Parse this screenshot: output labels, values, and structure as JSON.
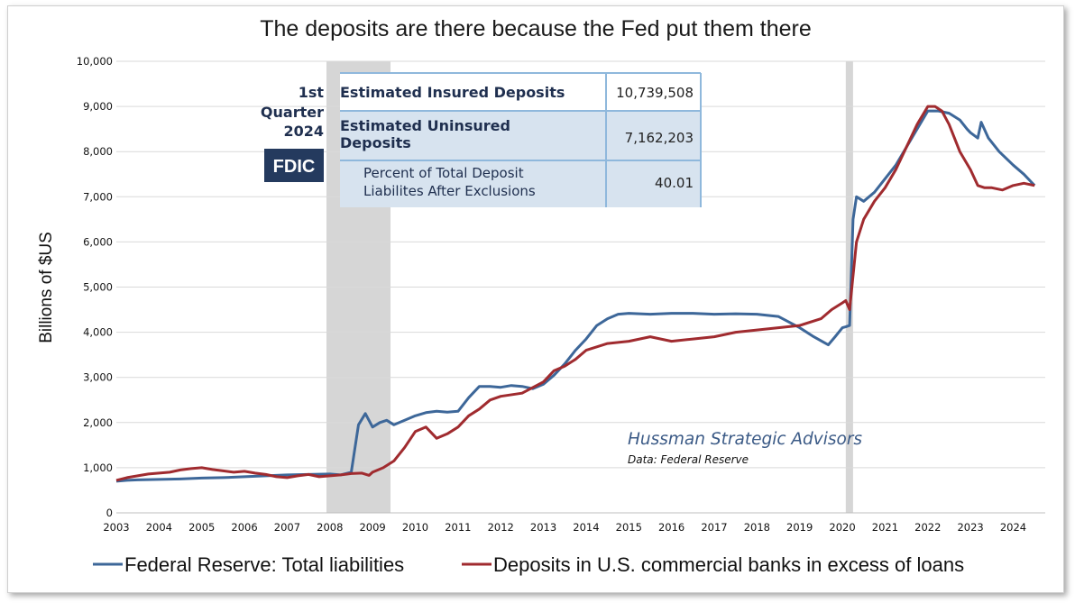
{
  "chart_data": {
    "type": "line",
    "title": "The deposits are there because the Fed put them there",
    "xlabel": "",
    "ylabel": "Billions of $US",
    "xlim": [
      2003.0,
      2024.75
    ],
    "ylim": [
      0,
      10000
    ],
    "yticks": [
      0,
      1000,
      2000,
      3000,
      4000,
      5000,
      6000,
      7000,
      8000,
      9000,
      10000
    ],
    "ytick_labels": [
      "0",
      "1,000",
      "2,000",
      "3,000",
      "4,000",
      "5,000",
      "6,000",
      "7,000",
      "8,000",
      "9,000",
      "10,000"
    ],
    "xticks": [
      2003,
      2004,
      2005,
      2006,
      2007,
      2008,
      2009,
      2010,
      2011,
      2012,
      2013,
      2014,
      2015,
      2016,
      2017,
      2018,
      2019,
      2020,
      2021,
      2022,
      2023,
      2024
    ],
    "xtick_labels": [
      "2003",
      "2004",
      "2005",
      "2006",
      "2007",
      "2008",
      "2009",
      "2010",
      "2011",
      "2012",
      "2013",
      "2014",
      "2015",
      "2016",
      "2017",
      "2018",
      "2019",
      "2020",
      "2021",
      "2022",
      "2023",
      "2024"
    ],
    "grid": "horizontal",
    "legend_position": "bottom",
    "recessions": [
      [
        2007.92,
        2009.42
      ],
      [
        2020.08,
        2020.25
      ]
    ],
    "series": [
      {
        "name": "Federal Reserve: Total liabilities",
        "color": "#3d6799",
        "x": [
          2003.0,
          2003.25,
          2003.5,
          2004.0,
          2004.5,
          2005.0,
          2005.5,
          2006.0,
          2006.5,
          2007.0,
          2007.5,
          2008.0,
          2008.25,
          2008.5,
          2008.67,
          2008.83,
          2009.0,
          2009.17,
          2009.33,
          2009.5,
          2009.75,
          2010.0,
          2010.25,
          2010.5,
          2010.75,
          2011.0,
          2011.25,
          2011.5,
          2011.75,
          2012.0,
          2012.25,
          2012.5,
          2012.75,
          2013.0,
          2013.25,
          2013.5,
          2013.75,
          2014.0,
          2014.25,
          2014.5,
          2014.75,
          2015.0,
          2015.5,
          2016.0,
          2016.5,
          2017.0,
          2017.5,
          2018.0,
          2018.5,
          2019.0,
          2019.33,
          2019.67,
          2019.83,
          2020.0,
          2020.08,
          2020.17,
          2020.25,
          2020.33,
          2020.5,
          2020.75,
          2021.0,
          2021.25,
          2021.5,
          2021.75,
          2022.0,
          2022.25,
          2022.5,
          2022.75,
          2022.92,
          2023.0,
          2023.17,
          2023.25,
          2023.42,
          2023.67,
          2024.0,
          2024.25,
          2024.5
        ],
        "values": [
          700,
          720,
          730,
          740,
          750,
          770,
          780,
          800,
          820,
          840,
          850,
          860,
          840,
          900,
          1950,
          2200,
          1900,
          2000,
          2050,
          1950,
          2050,
          2150,
          2220,
          2250,
          2230,
          2250,
          2550,
          2800,
          2800,
          2780,
          2820,
          2800,
          2750,
          2850,
          3050,
          3300,
          3600,
          3850,
          4150,
          4300,
          4400,
          4420,
          4400,
          4420,
          4420,
          4400,
          4410,
          4400,
          4350,
          4100,
          3900,
          3720,
          3900,
          4100,
          4120,
          4150,
          6500,
          7000,
          6900,
          7100,
          7400,
          7700,
          8100,
          8500,
          8900,
          8900,
          8850,
          8700,
          8500,
          8420,
          8300,
          8650,
          8300,
          8000,
          7700,
          7500,
          7250
        ]
      },
      {
        "name": "Deposits in U.S. commercial banks in excess of loans",
        "color": "#a02b2f",
        "x": [
          2003.0,
          2003.25,
          2003.5,
          2003.75,
          2004.0,
          2004.25,
          2004.5,
          2004.75,
          2005.0,
          2005.25,
          2005.5,
          2005.75,
          2006.0,
          2006.25,
          2006.5,
          2006.75,
          2007.0,
          2007.25,
          2007.5,
          2007.75,
          2008.0,
          2008.25,
          2008.5,
          2008.75,
          2008.92,
          2009.0,
          2009.25,
          2009.5,
          2009.75,
          2010.0,
          2010.25,
          2010.5,
          2010.75,
          2011.0,
          2011.25,
          2011.5,
          2011.75,
          2012.0,
          2012.5,
          2013.0,
          2013.25,
          2013.5,
          2013.75,
          2014.0,
          2014.5,
          2015.0,
          2015.5,
          2016.0,
          2016.5,
          2017.0,
          2017.5,
          2018.0,
          2018.5,
          2019.0,
          2019.5,
          2019.75,
          2020.0,
          2020.08,
          2020.17,
          2020.33,
          2020.5,
          2020.75,
          2021.0,
          2021.25,
          2021.5,
          2021.75,
          2022.0,
          2022.17,
          2022.33,
          2022.5,
          2022.75,
          2023.0,
          2023.17,
          2023.33,
          2023.5,
          2023.75,
          2024.0,
          2024.25,
          2024.5
        ],
        "values": [
          720,
          780,
          820,
          860,
          880,
          900,
          950,
          980,
          1000,
          960,
          930,
          900,
          920,
          880,
          850,
          800,
          780,
          820,
          850,
          800,
          820,
          840,
          870,
          880,
          830,
          900,
          1000,
          1150,
          1450,
          1800,
          1900,
          1650,
          1750,
          1900,
          2150,
          2300,
          2500,
          2580,
          2650,
          2900,
          3150,
          3250,
          3400,
          3600,
          3750,
          3800,
          3900,
          3800,
          3850,
          3900,
          4000,
          4050,
          4100,
          4150,
          4300,
          4500,
          4650,
          4700,
          4500,
          6000,
          6500,
          6900,
          7200,
          7600,
          8100,
          8600,
          9000,
          9000,
          8900,
          8600,
          8000,
          7600,
          7250,
          7200,
          7200,
          7150,
          7250,
          7300,
          7250
        ]
      }
    ],
    "annotations": {
      "credit": "Hussman Strategic Advisors",
      "credit_source": "Data: Federal Reserve"
    }
  },
  "inset": {
    "period_line1": "1st",
    "period_line2": "Quarter",
    "period_line3": "2024",
    "logo_text": "FDIC",
    "rows": [
      {
        "label_line1": "Estimated Insured Deposits",
        "label_line2": "",
        "value": "10,739,508"
      },
      {
        "label_line1": "Estimated Uninsured",
        "label_line2": "Deposits",
        "value": "7,162,203"
      },
      {
        "label_line1": "Percent of Total Deposit",
        "label_line2": "Liabilites After Exclusions",
        "value": "40.01"
      }
    ]
  },
  "colors": {
    "fed_line": "#3d6799",
    "deposits_line": "#a02b2f",
    "recession_shade": "#d6d6d6",
    "table_header": "#d7e3ef",
    "table_border": "#8fb8dc",
    "logo_bg": "#243a5e"
  }
}
